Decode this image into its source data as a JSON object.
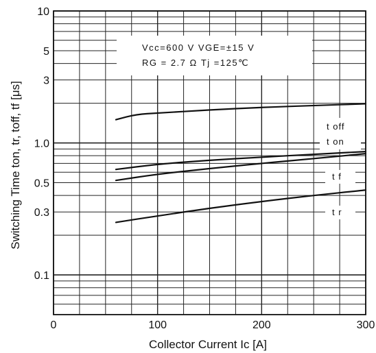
{
  "chart_data": {
    "type": "line",
    "title": "",
    "xlabel": "Collector Current Ic [A]",
    "ylabel": "Switching Time ton, tr, toff, tf [μs]",
    "xscale": "linear",
    "yscale": "log",
    "xlim": [
      0,
      300
    ],
    "ylim": [
      0.05,
      10
    ],
    "xticks": [
      "0",
      "100",
      "200",
      "300"
    ],
    "yticks": [
      {
        "value": 0.1,
        "label": "0.1"
      },
      {
        "value": 0.3,
        "label": "0.3"
      },
      {
        "value": 0.5,
        "label": "0.5"
      },
      {
        "value": 1.0,
        "label": "1.0"
      },
      {
        "value": 3,
        "label": "3"
      },
      {
        "value": 5,
        "label": "5"
      },
      {
        "value": 10,
        "label": "10"
      }
    ],
    "grid": true,
    "conditions": {
      "line1": "Vcc=600 V   VGE=±15 V",
      "line2": "RG =  2.7 Ω   Tj =125℃"
    },
    "series": [
      {
        "name": "t off",
        "x": [
          60,
          80,
          100,
          150,
          200,
          250,
          300
        ],
        "y": [
          1.5,
          1.65,
          1.68,
          1.78,
          1.86,
          1.92,
          1.98
        ]
      },
      {
        "name": "t on",
        "x": [
          60,
          100,
          150,
          200,
          250,
          300
        ],
        "y": [
          0.63,
          0.69,
          0.74,
          0.78,
          0.82,
          0.86
        ]
      },
      {
        "name": "t f",
        "x": [
          60,
          100,
          150,
          200,
          250,
          300
        ],
        "y": [
          0.52,
          0.58,
          0.64,
          0.7,
          0.76,
          0.83
        ]
      },
      {
        "name": "t r",
        "x": [
          60,
          100,
          150,
          200,
          250,
          300
        ],
        "y": [
          0.25,
          0.28,
          0.32,
          0.36,
          0.4,
          0.44
        ]
      }
    ]
  }
}
